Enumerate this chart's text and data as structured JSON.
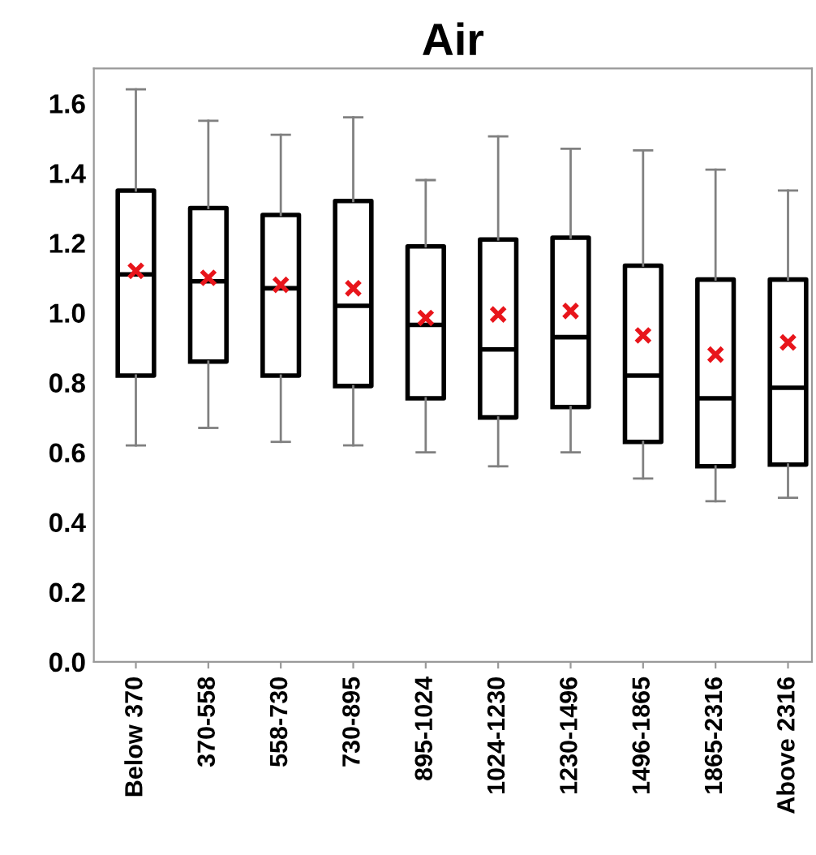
{
  "chart_data": {
    "type": "box",
    "title": "Air",
    "categories": [
      "Below 370",
      "370-558",
      "558-730",
      "730-895",
      "895-1024",
      "1024-1230",
      "1230-1496",
      "1496-1865",
      "1865-2316",
      "Above 2316"
    ],
    "boxes": [
      {
        "low": 0.62,
        "q1": 0.82,
        "median": 1.11,
        "q3": 1.35,
        "high": 1.64,
        "mean": 1.12
      },
      {
        "low": 0.67,
        "q1": 0.86,
        "median": 1.09,
        "q3": 1.3,
        "high": 1.55,
        "mean": 1.1
      },
      {
        "low": 0.63,
        "q1": 0.82,
        "median": 1.07,
        "q3": 1.28,
        "high": 1.51,
        "mean": 1.08
      },
      {
        "low": 0.62,
        "q1": 0.79,
        "median": 1.02,
        "q3": 1.32,
        "high": 1.56,
        "mean": 1.07
      },
      {
        "low": 0.6,
        "q1": 0.755,
        "median": 0.965,
        "q3": 1.19,
        "high": 1.38,
        "mean": 0.985
      },
      {
        "low": 0.56,
        "q1": 0.7,
        "median": 0.895,
        "q3": 1.21,
        "high": 1.505,
        "mean": 0.995
      },
      {
        "low": 0.6,
        "q1": 0.73,
        "median": 0.93,
        "q3": 1.215,
        "high": 1.47,
        "mean": 1.005
      },
      {
        "low": 0.525,
        "q1": 0.63,
        "median": 0.82,
        "q3": 1.135,
        "high": 1.465,
        "mean": 0.935
      },
      {
        "low": 0.46,
        "q1": 0.56,
        "median": 0.755,
        "q3": 1.095,
        "high": 1.41,
        "mean": 0.88
      },
      {
        "low": 0.47,
        "q1": 0.565,
        "median": 0.785,
        "q3": 1.095,
        "high": 1.35,
        "mean": 0.915
      }
    ],
    "color": "#000000",
    "ylim": [
      0,
      1.7
    ],
    "yticks": [
      {
        "value": 0,
        "label": "0.0"
      },
      0.2,
      0.4,
      0.6,
      0.8,
      {
        "value": 1,
        "label": "1.0"
      },
      1.2,
      1.4,
      1.6
    ],
    "grid": false,
    "legend": false
  }
}
